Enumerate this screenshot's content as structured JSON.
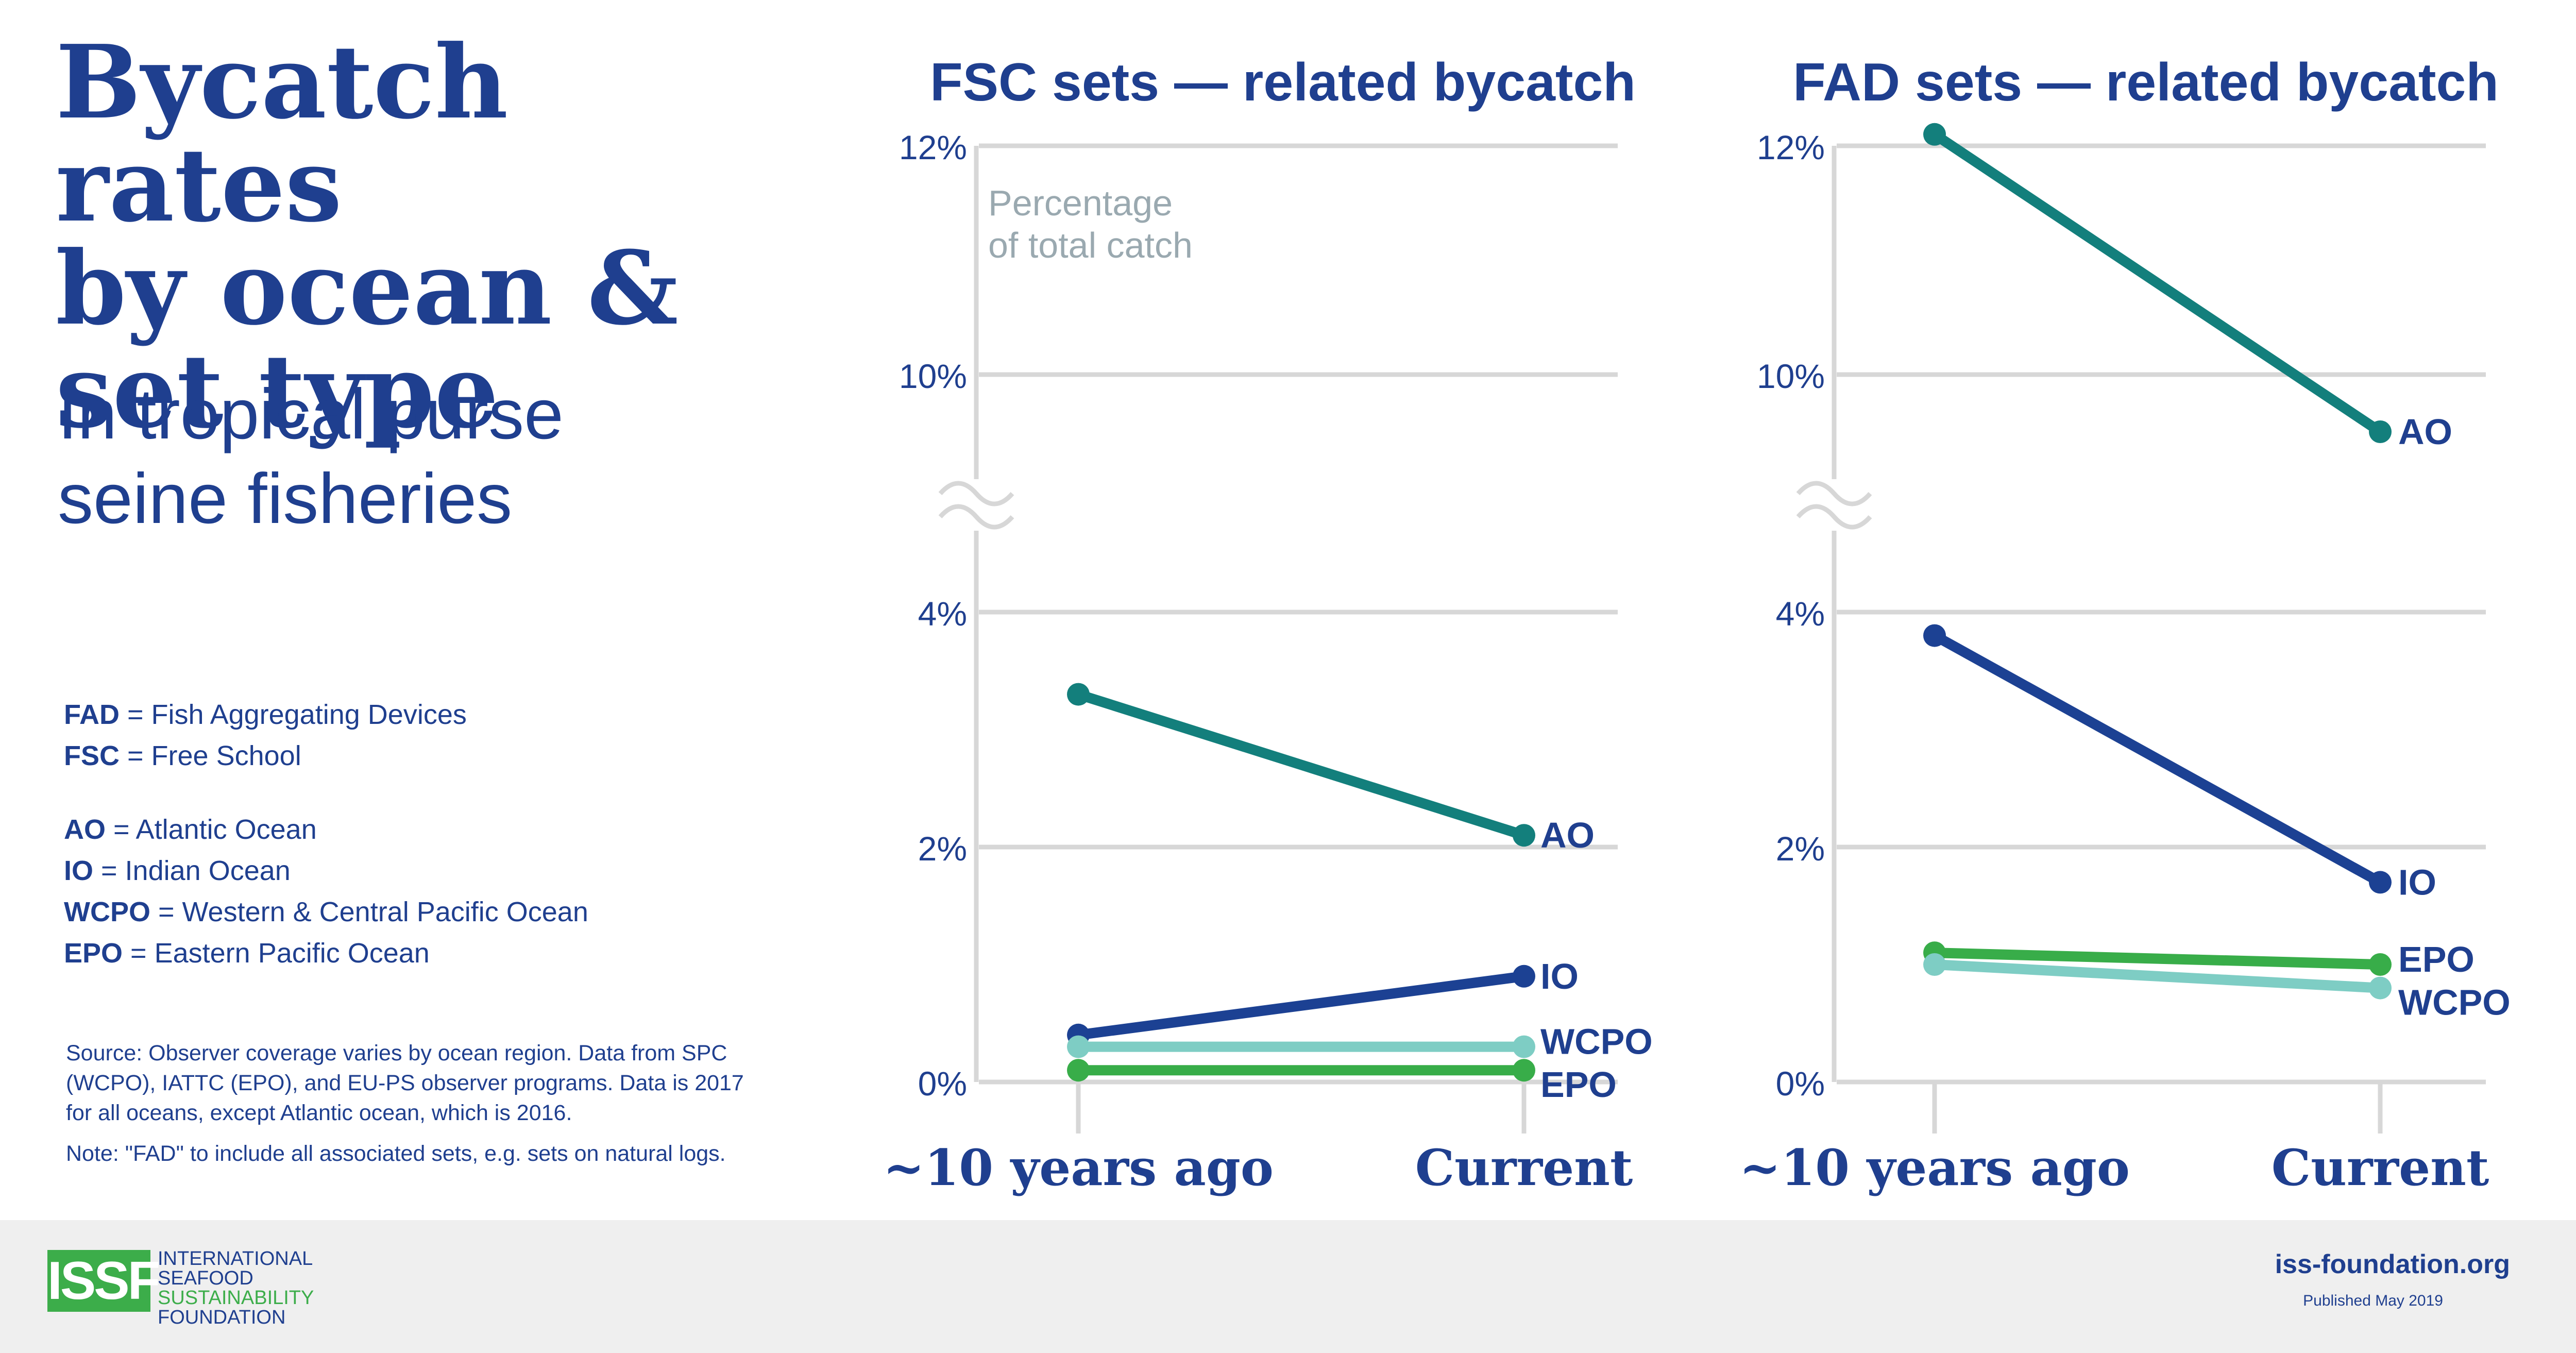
{
  "page": {
    "title_lines": [
      "Bycatch rates",
      "by ocean &",
      "set type"
    ],
    "subtitle_lines": [
      "In tropical purse",
      "seine fisheries"
    ],
    "definitions_sets": [
      {
        "abbr": "FAD",
        "text": " = Fish Aggregating Devices"
      },
      {
        "abbr": "FSC",
        "text": " = Free School"
      }
    ],
    "definitions_oceans": [
      {
        "abbr": "AO",
        "text": " = Atlantic Ocean"
      },
      {
        "abbr": "IO",
        "text": " = Indian Ocean"
      },
      {
        "abbr": "WCPO",
        "text": " = Western & Central Pacific Ocean"
      },
      {
        "abbr": "EPO",
        "text": " = Eastern Pacific Ocean"
      }
    ],
    "source_lines": [
      "Source: Observer coverage varies by ocean region. Data from SPC",
      "(WCPO), IATTC (EPO), and EU-PS observer programs. Data is 2017",
      "for all oceans, except Atlantic ocean, which is 2016."
    ],
    "note": "Note: \"FAD\" to include all associated sets, e.g. sets on natural logs.",
    "footer": {
      "logo_text": "ISSF",
      "org_lines": [
        "INTERNATIONAL",
        "SEAFOOD",
        "SUSTAINABILITY",
        "FOUNDATION"
      ],
      "url": "iss-foundation.org",
      "published": "Published May 2019"
    }
  },
  "colors": {
    "navy": "#1f3f8f",
    "AO": "#137f7c",
    "IO": "#1c4193",
    "WCPO": "#7ecdc4",
    "EPO": "#38ad49",
    "grid": "#d7d7d7",
    "annotation": "#9aa9b0",
    "footer_bg": "#efefef"
  },
  "chart_data": [
    {
      "type": "line",
      "title": "FSC sets — related bycatch",
      "annotation": [
        "Percentage",
        "of total catch"
      ],
      "categories": [
        "~10 years ago",
        "Current"
      ],
      "y_ticks": [
        "0%",
        "2%",
        "4%",
        "10%",
        "12%"
      ],
      "y_axis_break": "between 4% and 10%",
      "grid": true,
      "series": [
        {
          "name": "AO",
          "values": [
            3.3,
            2.1
          ]
        },
        {
          "name": "IO",
          "values": [
            0.4,
            0.9
          ]
        },
        {
          "name": "WCPO",
          "values": [
            0.3,
            0.3
          ]
        },
        {
          "name": "EPO",
          "values": [
            0.1,
            0.1
          ]
        }
      ]
    },
    {
      "type": "line",
      "title": "FAD sets — related bycatch",
      "categories": [
        "~10 years ago",
        "Current"
      ],
      "y_ticks": [
        "0%",
        "2%",
        "4%",
        "10%",
        "12%"
      ],
      "y_axis_break": "between 4% and 10%",
      "grid": true,
      "series": [
        {
          "name": "AO",
          "values": [
            12.1,
            9.5
          ]
        },
        {
          "name": "IO",
          "values": [
            3.8,
            1.7
          ]
        },
        {
          "name": "EPO",
          "values": [
            1.1,
            1.0
          ]
        },
        {
          "name": "WCPO",
          "values": [
            1.0,
            0.8
          ]
        }
      ]
    }
  ]
}
